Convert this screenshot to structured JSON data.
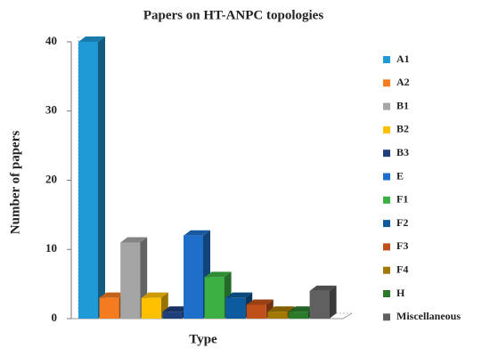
{
  "chart_data": {
    "type": "bar",
    "title": "Papers on HT-ANPC topologies",
    "x_label": "Type",
    "y_label": "Number of papers",
    "categories": [
      "A1",
      "A2",
      "B1",
      "B2",
      "B3",
      "E",
      "F1",
      "F2",
      "F3",
      "F4",
      "H",
      "Miscellaneous"
    ],
    "values": [
      40,
      3,
      11,
      3,
      1,
      12,
      6,
      3,
      2,
      1,
      1,
      4
    ],
    "colors": [
      "#1f9ad6",
      "#f47b20",
      "#a5a5a5",
      "#ffc000",
      "#1f3f7a",
      "#1e6fc9",
      "#3cb043",
      "#0b5b9e",
      "#c0501a",
      "#a27800",
      "#2a7a2a",
      "#606060"
    ],
    "ylim": [
      0,
      40
    ],
    "yticks": [
      0,
      10,
      20,
      30,
      40
    ],
    "legend": "right"
  }
}
